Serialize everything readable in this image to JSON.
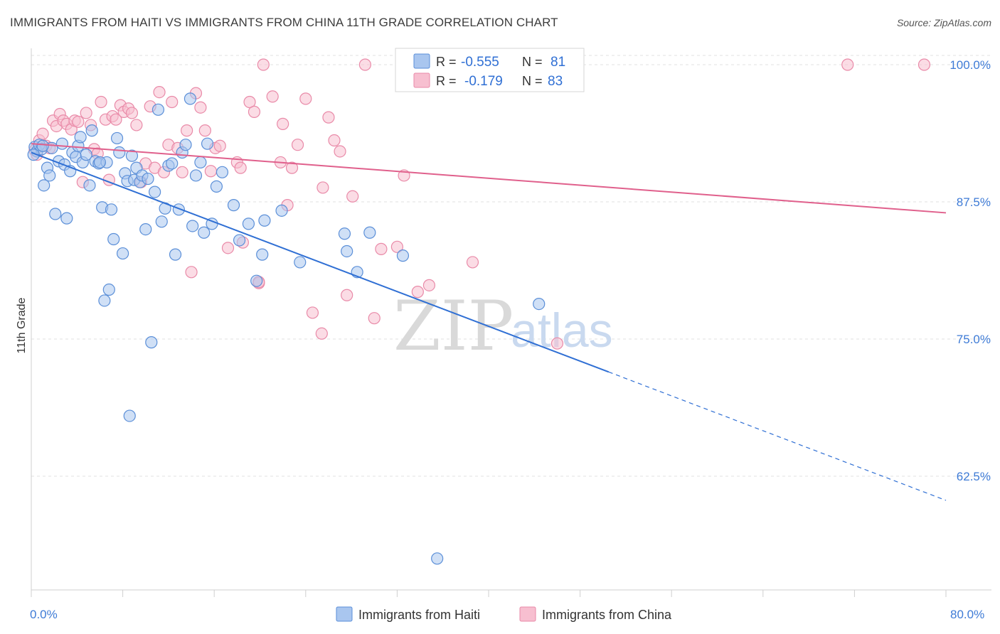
{
  "title": "IMMIGRANTS FROM HAITI VS IMMIGRANTS FROM CHINA 11TH GRADE CORRELATION CHART",
  "source": "Source: ZipAtlas.com",
  "watermark": {
    "zip": "ZIP",
    "atlas": "atlas"
  },
  "colors": {
    "haiti_fill": "#a9c6ef",
    "haiti_stroke": "#5b8fd8",
    "haiti_line": "#2f6fd4",
    "china_fill": "#f7bfd0",
    "china_stroke": "#e98aa8",
    "china_line": "#e0608c",
    "axis_label": "#3e7bd6",
    "grid": "#e2e2e2"
  },
  "legend": {
    "rows": [
      {
        "r_label": "R =",
        "r_value": "-0.555",
        "n_label": "N =",
        "n_value": "81"
      },
      {
        "r_label": "R =",
        "r_value": "-0.179",
        "n_label": "N =",
        "n_value": "83"
      }
    ]
  },
  "chart_data": {
    "type": "scatter",
    "title": "IMMIGRANTS FROM HAITI VS IMMIGRANTS FROM CHINA 11TH GRADE CORRELATION CHART",
    "xlabel": "",
    "ylabel": "11th Grade",
    "xlim": [
      0,
      80
    ],
    "ylim": [
      50,
      101
    ],
    "x_tick_labels": [
      "0.0%",
      "80.0%"
    ],
    "y_ticks": [
      62.5,
      75.0,
      87.5,
      100.0
    ],
    "y_tick_labels": [
      "62.5%",
      "75.0%",
      "87.5%",
      "100.0%"
    ],
    "grid": true,
    "legend_position": "top-center",
    "series": [
      {
        "name": "Immigrants from Haiti",
        "r": -0.555,
        "n": 81,
        "trend": {
          "x0": 0,
          "y0": 92.0,
          "x1": 50.5,
          "y1": 72.0,
          "dash_x1": 80,
          "dash_y1": 60.3
        },
        "points": [
          [
            0.3,
            92.5
          ],
          [
            0.5,
            92.1
          ],
          [
            0.7,
            92.7
          ],
          [
            0.9,
            92.3
          ],
          [
            1.1,
            89.0
          ],
          [
            1.4,
            90.6
          ],
          [
            1.6,
            89.9
          ],
          [
            1.8,
            92.4
          ],
          [
            2.1,
            86.4
          ],
          [
            2.4,
            91.2
          ],
          [
            2.7,
            92.8
          ],
          [
            2.9,
            90.9
          ],
          [
            3.1,
            86.0
          ],
          [
            3.4,
            90.3
          ],
          [
            3.6,
            92.0
          ],
          [
            3.9,
            91.6
          ],
          [
            4.1,
            92.6
          ],
          [
            4.3,
            93.4
          ],
          [
            4.5,
            91.1
          ],
          [
            4.8,
            91.8
          ],
          [
            5.1,
            89.0
          ],
          [
            5.3,
            94.0
          ],
          [
            5.6,
            91.2
          ],
          [
            5.9,
            91.0
          ],
          [
            6.2,
            87.0
          ],
          [
            6.4,
            78.5
          ],
          [
            6.6,
            91.1
          ],
          [
            6.8,
            79.5
          ],
          [
            7.0,
            86.8
          ],
          [
            7.2,
            84.1
          ],
          [
            7.5,
            93.3
          ],
          [
            7.7,
            92.0
          ],
          [
            8.0,
            82.8
          ],
          [
            8.2,
            90.1
          ],
          [
            8.4,
            89.4
          ],
          [
            8.6,
            68.0
          ],
          [
            8.8,
            91.7
          ],
          [
            9.0,
            89.5
          ],
          [
            9.2,
            90.6
          ],
          [
            9.5,
            89.3
          ],
          [
            9.7,
            89.9
          ],
          [
            10.0,
            85.0
          ],
          [
            10.2,
            89.6
          ],
          [
            10.5,
            74.7
          ],
          [
            10.8,
            88.4
          ],
          [
            11.1,
            95.9
          ],
          [
            11.4,
            85.7
          ],
          [
            11.7,
            86.9
          ],
          [
            12.0,
            90.8
          ],
          [
            12.3,
            91.0
          ],
          [
            12.6,
            82.7
          ],
          [
            12.9,
            86.8
          ],
          [
            13.2,
            92.0
          ],
          [
            13.5,
            92.7
          ],
          [
            13.9,
            96.9
          ],
          [
            14.1,
            85.3
          ],
          [
            14.4,
            89.9
          ],
          [
            14.8,
            91.1
          ],
          [
            15.1,
            84.7
          ],
          [
            15.4,
            92.8
          ],
          [
            15.8,
            85.5
          ],
          [
            16.2,
            88.9
          ],
          [
            16.7,
            90.2
          ],
          [
            17.7,
            87.2
          ],
          [
            18.2,
            84.0
          ],
          [
            19.0,
            85.5
          ],
          [
            19.7,
            80.3
          ],
          [
            20.2,
            82.7
          ],
          [
            20.4,
            85.8
          ],
          [
            21.9,
            86.7
          ],
          [
            23.5,
            82.0
          ],
          [
            27.4,
            84.6
          ],
          [
            27.6,
            83.0
          ],
          [
            28.5,
            81.1
          ],
          [
            29.6,
            84.7
          ],
          [
            32.5,
            82.6
          ],
          [
            44.4,
            78.2
          ],
          [
            35.5,
            55.0
          ],
          [
            0.2,
            91.8
          ],
          [
            1.0,
            92.6
          ],
          [
            6.0,
            91.1
          ]
        ]
      },
      {
        "name": "Immigrants from China",
        "r": -0.179,
        "n": 83,
        "trend": {
          "x0": 0,
          "y0": 92.8,
          "x1": 80,
          "y1": 86.5
        },
        "points": [
          [
            0.3,
            92.2
          ],
          [
            0.5,
            91.8
          ],
          [
            0.7,
            93.1
          ],
          [
            1.0,
            93.7
          ],
          [
            1.3,
            92.6
          ],
          [
            1.6,
            92.4
          ],
          [
            1.9,
            94.9
          ],
          [
            2.2,
            94.4
          ],
          [
            2.5,
            95.5
          ],
          [
            2.8,
            94.9
          ],
          [
            3.1,
            94.6
          ],
          [
            3.5,
            94.1
          ],
          [
            3.8,
            94.9
          ],
          [
            4.1,
            94.8
          ],
          [
            4.5,
            89.3
          ],
          [
            4.8,
            95.6
          ],
          [
            5.2,
            94.5
          ],
          [
            5.5,
            92.3
          ],
          [
            5.8,
            91.9
          ],
          [
            6.1,
            96.6
          ],
          [
            6.5,
            95.0
          ],
          [
            6.8,
            89.5
          ],
          [
            7.1,
            95.3
          ],
          [
            7.4,
            95.0
          ],
          [
            7.8,
            96.3
          ],
          [
            8.1,
            95.7
          ],
          [
            8.5,
            96.0
          ],
          [
            8.8,
            95.6
          ],
          [
            9.2,
            94.5
          ],
          [
            9.6,
            89.3
          ],
          [
            10.0,
            91.0
          ],
          [
            10.4,
            96.2
          ],
          [
            10.8,
            90.6
          ],
          [
            11.2,
            97.5
          ],
          [
            11.6,
            90.2
          ],
          [
            12.0,
            92.7
          ],
          [
            12.3,
            96.6
          ],
          [
            12.8,
            92.4
          ],
          [
            13.2,
            90.2
          ],
          [
            13.6,
            94.0
          ],
          [
            14.0,
            81.1
          ],
          [
            14.4,
            97.4
          ],
          [
            14.8,
            96.1
          ],
          [
            15.2,
            94.0
          ],
          [
            15.7,
            90.3
          ],
          [
            16.1,
            92.4
          ],
          [
            16.5,
            92.6
          ],
          [
            17.2,
            83.3
          ],
          [
            18.0,
            91.1
          ],
          [
            18.3,
            90.6
          ],
          [
            18.5,
            83.8
          ],
          [
            19.1,
            96.6
          ],
          [
            19.5,
            95.7
          ],
          [
            19.9,
            80.1
          ],
          [
            20.3,
            100.0
          ],
          [
            21.1,
            97.1
          ],
          [
            21.8,
            91.1
          ],
          [
            22.0,
            94.6
          ],
          [
            22.4,
            87.2
          ],
          [
            22.8,
            90.6
          ],
          [
            23.3,
            92.7
          ],
          [
            24.0,
            96.9
          ],
          [
            24.6,
            77.4
          ],
          [
            25.4,
            75.5
          ],
          [
            25.5,
            88.8
          ],
          [
            26.0,
            95.2
          ],
          [
            26.5,
            93.1
          ],
          [
            27.0,
            92.1
          ],
          [
            27.6,
            79.0
          ],
          [
            28.1,
            88.0
          ],
          [
            29.2,
            100.0
          ],
          [
            30.0,
            76.9
          ],
          [
            30.6,
            83.2
          ],
          [
            32.0,
            83.4
          ],
          [
            32.6,
            89.9
          ],
          [
            33.8,
            79.3
          ],
          [
            34.8,
            79.9
          ],
          [
            38.6,
            82.0
          ],
          [
            46.0,
            74.6
          ],
          [
            71.4,
            100.0
          ],
          [
            78.1,
            100.0
          ],
          [
            32.9,
            100.0
          ],
          [
            19.9,
            80.2
          ]
        ]
      }
    ]
  },
  "bottom_legend": {
    "items": [
      "Immigrants from Haiti",
      "Immigrants from China"
    ]
  }
}
